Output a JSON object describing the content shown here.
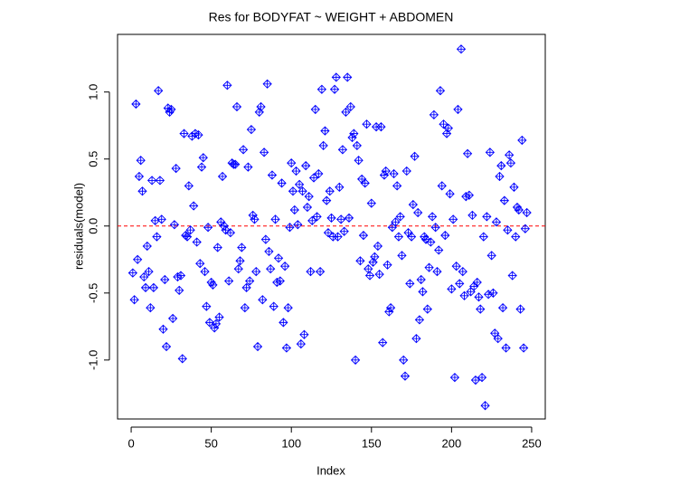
{
  "chart_data": {
    "type": "scatter",
    "title": "Res for BODYFAT ~ WEIGHT + ABDOMEN",
    "x_label": "Index",
    "y_label": "residuals(model)",
    "xlim": [
      -8.5,
      258.5
    ],
    "ylim": [
      -1.44,
      1.43
    ],
    "xticks": [
      0,
      50,
      100,
      150,
      200,
      250
    ],
    "yticks": [
      {
        "value": -1,
        "label": "-1.0"
      },
      -0.5,
      {
        "value": 0,
        "label": "0.0"
      },
      0.5,
      {
        "value": 1,
        "label": "1.0"
      }
    ],
    "reference_line": {
      "y": 0,
      "color": "#ff0000"
    },
    "series": [
      {
        "color": "#0000ff",
        "x": [
          1,
          2,
          3,
          4,
          5,
          6,
          7,
          8,
          9,
          10,
          11,
          12,
          13,
          14,
          15,
          16,
          17,
          18,
          19,
          20,
          21,
          22,
          23,
          24,
          25,
          26,
          27,
          28,
          29,
          30,
          31,
          32,
          33,
          34,
          35,
          36,
          37,
          38,
          39,
          40,
          41,
          42,
          43,
          44,
          45,
          46,
          47,
          48,
          49,
          50,
          51,
          52,
          53,
          54,
          55,
          56,
          57,
          58,
          59,
          60,
          61,
          62,
          63,
          64,
          65,
          66,
          67,
          68,
          69,
          70,
          71,
          72,
          73,
          74,
          75,
          76,
          77,
          78,
          79,
          80,
          81,
          82,
          83,
          84,
          85,
          86,
          87,
          88,
          89,
          90,
          91,
          92,
          93,
          94,
          95,
          96,
          97,
          98,
          99,
          100,
          101,
          102,
          103,
          104,
          105,
          106,
          107,
          108,
          109,
          110,
          111,
          112,
          113,
          114,
          115,
          116,
          117,
          118,
          119,
          120,
          121,
          122,
          123,
          124,
          125,
          126,
          127,
          128,
          129,
          130,
          131,
          132,
          133,
          134,
          135,
          136,
          137,
          138,
          139,
          140,
          141,
          142,
          143,
          144,
          145,
          146,
          147,
          148,
          149,
          150,
          151,
          152,
          153,
          154,
          155,
          156,
          157,
          158,
          159,
          160,
          161,
          162,
          163,
          164,
          165,
          166,
          167,
          168,
          169,
          170,
          171,
          172,
          173,
          174,
          175,
          176,
          177,
          178,
          179,
          180,
          181,
          182,
          183,
          184,
          185,
          186,
          187,
          188,
          189,
          190,
          191,
          192,
          193,
          194,
          195,
          196,
          197,
          198,
          199,
          200,
          201,
          202,
          203,
          204,
          205,
          206,
          207,
          208,
          209,
          210,
          211,
          212,
          213,
          214,
          215,
          216,
          217,
          218,
          219,
          220,
          221,
          222,
          223,
          224,
          225,
          226,
          227,
          228,
          229,
          230,
          231,
          232,
          233,
          234,
          235,
          236,
          237,
          238,
          239,
          240,
          241,
          242,
          243,
          244,
          245,
          246,
          247
        ],
        "values": [
          -0.35,
          -0.55,
          0.91,
          -0.25,
          0.37,
          0.49,
          0.26,
          -0.38,
          -0.46,
          -0.15,
          -0.34,
          -0.61,
          0.34,
          -0.46,
          0.04,
          -0.08,
          1.01,
          0.34,
          0.05,
          -0.77,
          -0.4,
          -0.9,
          0.88,
          0.85,
          0.87,
          -0.69,
          0.01,
          0.43,
          -0.38,
          -0.48,
          -0.37,
          -0.99,
          0.69,
          -0.07,
          -0.08,
          0.3,
          -0.03,
          0.67,
          0.15,
          0.69,
          -0.12,
          0.68,
          -0.28,
          0.44,
          0.51,
          -0.34,
          -0.6,
          -0.01,
          -0.72,
          -0.42,
          -0.44,
          -0.76,
          -0.73,
          -0.16,
          -0.68,
          0.03,
          0.37,
          0.0,
          -0.03,
          1.05,
          -0.41,
          -0.05,
          0.47,
          0.46,
          0.46,
          0.89,
          -0.32,
          -0.26,
          -0.16,
          0.57,
          -0.61,
          -0.46,
          0.44,
          -0.41,
          0.72,
          0.08,
          0.05,
          -0.34,
          -0.9,
          0.85,
          0.89,
          -0.55,
          0.55,
          -0.1,
          1.06,
          -0.19,
          -0.32,
          0.38,
          -0.6,
          0.05,
          -0.42,
          -0.24,
          -0.41,
          0.32,
          -0.72,
          -0.3,
          -0.91,
          -0.61,
          -0.01,
          0.47,
          0.26,
          0.12,
          0.41,
          0.01,
          0.31,
          -0.88,
          0.26,
          -0.81,
          0.45,
          0.14,
          0.22,
          -0.34,
          0.04,
          0.36,
          0.87,
          0.07,
          0.39,
          -0.34,
          1.02,
          0.6,
          0.71,
          0.19,
          -0.05,
          0.26,
          0.06,
          -0.08,
          1.02,
          1.11,
          -0.08,
          0.29,
          0.05,
          0.57,
          -0.04,
          0.85,
          1.11,
          0.06,
          0.89,
          0.66,
          0.69,
          -1.0,
          0.6,
          0.49,
          -0.26,
          0.35,
          -0.07,
          0.32,
          0.76,
          -0.32,
          -0.37,
          0.17,
          -0.27,
          -0.23,
          0.74,
          -0.15,
          -0.36,
          0.74,
          -0.87,
          0.38,
          0.41,
          -0.29,
          -0.64,
          -0.61,
          -0.01,
          0.39,
          0.03,
          0.3,
          -0.08,
          0.07,
          -0.22,
          -1.0,
          -1.12,
          0.41,
          -0.05,
          -0.43,
          -0.08,
          0.16,
          0.52,
          -0.84,
          0.1,
          -0.7,
          -0.4,
          -0.49,
          -0.08,
          -0.1,
          -0.62,
          -0.31,
          -0.12,
          0.07,
          0.83,
          -0.01,
          -0.34,
          -0.18,
          1.01,
          0.3,
          0.76,
          -0.07,
          0.69,
          0.73,
          0.24,
          -0.47,
          0.05,
          -1.13,
          -0.3,
          0.87,
          -0.43,
          1.32,
          -0.34,
          -0.52,
          0.22,
          0.54,
          0.23,
          -0.49,
          0.08,
          -0.45,
          -1.15,
          -0.42,
          -0.53,
          -0.62,
          -1.13,
          -0.08,
          -1.34,
          0.07,
          -0.51,
          0.55,
          -0.22,
          -0.5,
          -0.8,
          0.03,
          -0.84,
          0.37,
          0.45,
          -0.61,
          0.19,
          -0.91,
          -0.03,
          0.53,
          0.47,
          -0.37,
          0.29,
          -0.08,
          0.14,
          0.12,
          -0.62,
          0.64,
          -0.91,
          -0.02,
          0.1
        ]
      }
    ]
  }
}
